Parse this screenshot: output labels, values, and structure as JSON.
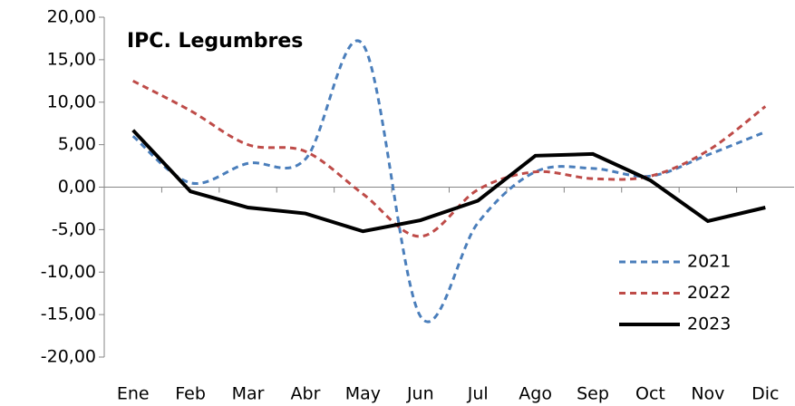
{
  "chart_data": {
    "type": "line",
    "title": "IPC. Legumbres",
    "categories": [
      "Ene",
      "Feb",
      "Mar",
      "Abr",
      "May",
      "Jun",
      "Jul",
      "Ago",
      "Sep",
      "Oct",
      "Nov",
      "Dic"
    ],
    "series": [
      {
        "name": "2021",
        "color": "#4a7ebb",
        "line_style": "dashed",
        "smooth": true,
        "values": [
          6.0,
          0.5,
          2.8,
          3.3,
          16.8,
          -15.2,
          -4.2,
          1.8,
          2.2,
          1.3,
          3.8,
          6.5
        ]
      },
      {
        "name": "2022",
        "color": "#be4b48",
        "line_style": "dashed",
        "smooth": true,
        "values": [
          12.5,
          9.0,
          5.0,
          4.2,
          -0.8,
          -5.8,
          -0.3,
          1.8,
          1.0,
          1.3,
          4.3,
          9.5
        ]
      },
      {
        "name": "2023",
        "color": "#000000",
        "line_style": "solid",
        "smooth": false,
        "values": [
          6.7,
          -0.5,
          -2.4,
          -3.1,
          -5.2,
          -3.9,
          -1.6,
          3.7,
          3.9,
          0.8,
          -4.0,
          -2.4
        ]
      }
    ],
    "ylim": [
      -20,
      20
    ],
    "yticks": [
      {
        "value": -20,
        "label": "-20,00"
      },
      {
        "value": -15,
        "label": "-15,00"
      },
      {
        "value": -10,
        "label": "-10,00"
      },
      {
        "value": -5,
        "label": "-5,00"
      },
      {
        "value": 0,
        "label": "0,00"
      },
      {
        "value": 5,
        "label": "5,00"
      },
      {
        "value": 10,
        "label": "10,00"
      },
      {
        "value": 15,
        "label": "15,00"
      },
      {
        "value": 20,
        "label": "20,00"
      }
    ],
    "legend": "lower right",
    "grid": false
  }
}
